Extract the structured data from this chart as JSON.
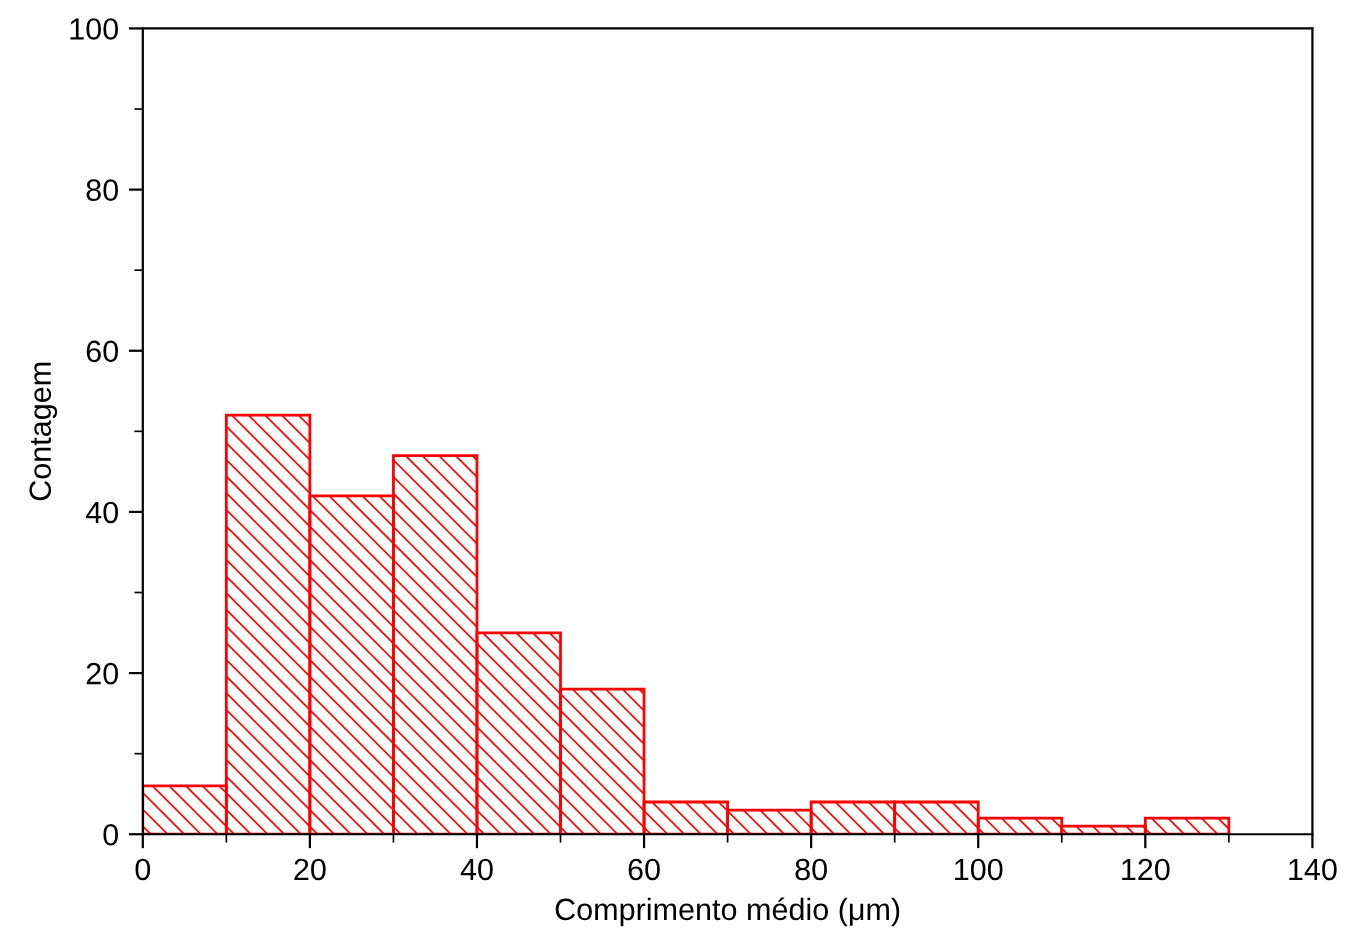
{
  "chart_data": {
    "type": "histogram",
    "xlabel": "Comprimento médio (μm)",
    "ylabel": "Contagem",
    "bins": [
      0,
      10,
      20,
      30,
      40,
      50,
      60,
      70,
      80,
      90,
      100,
      110,
      120,
      130
    ],
    "values": [
      6,
      52,
      42,
      47,
      25,
      18,
      4,
      3,
      4,
      4,
      2,
      1,
      2
    ],
    "color": "#ff0000",
    "xlim": [
      0,
      140
    ],
    "xticks": [
      0,
      20,
      40,
      60,
      80,
      100,
      120,
      140
    ],
    "ylim": [
      0,
      100
    ],
    "yticks": [
      0,
      20,
      40,
      60,
      80,
      100
    ],
    "grid": false,
    "legend": false
  }
}
